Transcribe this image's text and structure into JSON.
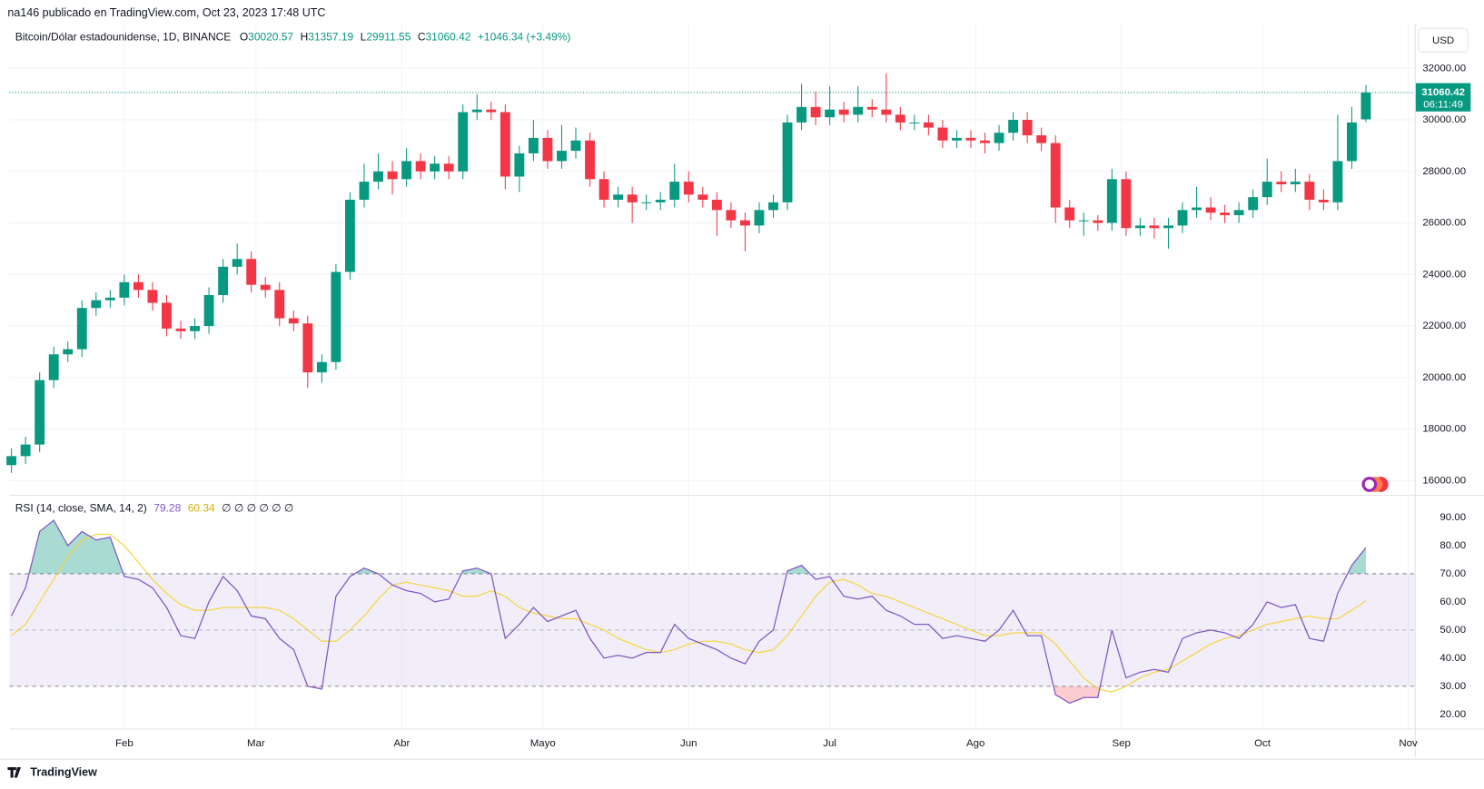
{
  "header": {
    "author": "na146 publicado en TradingView.com, Oct 23, 2023 17:48 UTC",
    "symbol": "Bitcoin/Dólar estadounidense, 1D, BINANCE",
    "ohlc": [
      "O",
      "30020.57",
      "H",
      "31357.19",
      "L",
      "29911.55",
      "C",
      "31060.42"
    ],
    "change": "+1046.34 (+3.49%)",
    "currency": "USD",
    "price_label": "31060.42",
    "countdown": "06:11:49"
  },
  "footer": {
    "brand": "TradingView"
  },
  "chart_data": [
    {
      "type": "candlestick",
      "up_color": "#089981",
      "down_color": "#f23645",
      "grid": true,
      "xlim": [
        6.6,
        305.4
      ],
      "xticks": [
        {
          "value": 31,
          "label": "Feb"
        },
        {
          "value": 59,
          "label": "Mar"
        },
        {
          "value": 90,
          "label": "Abr"
        },
        {
          "value": 120,
          "label": "Mayo"
        },
        {
          "value": 151,
          "label": "Jun"
        },
        {
          "value": 181,
          "label": "Jul"
        },
        {
          "value": 212,
          "label": "Ago"
        },
        {
          "value": 243,
          "label": "Sep"
        },
        {
          "value": 273,
          "label": "Oct"
        },
        {
          "value": 304,
          "label": "Nov"
        }
      ],
      "ylim": [
        15560,
        33000
      ],
      "yticks": [
        {
          "value": 16000,
          "label": "16000.00"
        },
        {
          "value": 18000,
          "label": "18000.00"
        },
        {
          "value": 20000,
          "label": "20000.00"
        },
        {
          "value": 22000,
          "label": "22000.00"
        },
        {
          "value": 24000,
          "label": "24000.00"
        },
        {
          "value": 26000,
          "label": "26000.00"
        },
        {
          "value": 28000,
          "label": "28000.00"
        },
        {
          "value": 30000,
          "label": "30000.00"
        },
        {
          "value": 32000,
          "label": "32000.00"
        }
      ],
      "x": [
        7,
        10,
        13,
        16,
        19,
        22,
        25,
        28,
        31,
        34,
        37,
        40,
        43,
        46,
        49,
        52,
        55,
        58,
        61,
        64,
        67,
        70,
        73,
        76,
        79,
        82,
        85,
        88,
        91,
        94,
        97,
        100,
        103,
        106,
        109,
        112,
        115,
        118,
        121,
        124,
        127,
        130,
        133,
        136,
        139,
        142,
        145,
        148,
        151,
        154,
        157,
        160,
        163,
        166,
        169,
        172,
        175,
        178,
        181,
        184,
        187,
        190,
        193,
        196,
        199,
        202,
        205,
        208,
        211,
        214,
        217,
        220,
        223,
        226,
        229,
        232,
        235,
        238,
        241,
        244,
        247,
        250,
        253,
        256,
        259,
        262,
        265,
        268,
        271,
        274,
        277,
        280,
        283,
        286,
        289,
        292,
        295
      ],
      "open": [
        16600,
        16950,
        17400,
        19900,
        20900,
        21100,
        22700,
        23000,
        23100,
        23700,
        23400,
        22900,
        21900,
        21800,
        22000,
        23200,
        24300,
        24600,
        23600,
        23400,
        22300,
        22100,
        20200,
        20600,
        24100,
        26900,
        27600,
        28000,
        27700,
        28400,
        28000,
        28300,
        28000,
        30300,
        30400,
        30300,
        27800,
        28700,
        29300,
        28400,
        28800,
        29200,
        27700,
        26900,
        27100,
        26800,
        26800,
        26900,
        27600,
        27100,
        26900,
        26500,
        26100,
        25900,
        26500,
        26800,
        29900,
        30500,
        30100,
        30400,
        30200,
        30500,
        30400,
        30200,
        29900,
        29900,
        29700,
        29200,
        29300,
        29200,
        29100,
        29500,
        30000,
        29400,
        29100,
        26600,
        26100,
        26100,
        26000,
        27700,
        25800,
        25900,
        25800,
        25900,
        26500,
        26600,
        26400,
        26300,
        26500,
        27000,
        27600,
        27500,
        27600,
        26900,
        26800,
        28400,
        30020.57
      ],
      "high": [
        17250,
        17700,
        20200,
        21200,
        21400,
        23000,
        23300,
        23400,
        24000,
        24000,
        23700,
        23200,
        22200,
        22300,
        23500,
        24600,
        25200,
        24900,
        23900,
        23700,
        22600,
        22400,
        20900,
        24400,
        27200,
        28300,
        28700,
        28400,
        28900,
        28700,
        28600,
        28600,
        30600,
        31000,
        30700,
        30600,
        29000,
        30000,
        29600,
        29800,
        29700,
        29500,
        28000,
        27400,
        27400,
        27100,
        27200,
        28300,
        28000,
        27400,
        27200,
        26800,
        26400,
        26800,
        27100,
        30200,
        31400,
        31100,
        31300,
        30700,
        31300,
        30800,
        31800,
        30500,
        30200,
        30200,
        30000,
        29600,
        29600,
        29500,
        29800,
        30300,
        30300,
        29700,
        29400,
        26900,
        26400,
        26300,
        28100,
        28000,
        26200,
        26200,
        26200,
        26800,
        27400,
        27000,
        26700,
        26800,
        27300,
        28500,
        28000,
        28100,
        27900,
        27300,
        30200,
        30500,
        31357.19
      ],
      "low": [
        16300,
        16650,
        17100,
        19600,
        20600,
        20800,
        22400,
        22700,
        22800,
        23100,
        22600,
        21600,
        21500,
        21500,
        21700,
        22900,
        24000,
        23300,
        23100,
        22000,
        21800,
        19600,
        19800,
        20300,
        23800,
        26600,
        27300,
        27100,
        27400,
        27700,
        27700,
        27700,
        27700,
        30000,
        30000,
        27300,
        27200,
        28400,
        28100,
        28100,
        28500,
        27400,
        26600,
        26600,
        26000,
        26500,
        26500,
        26600,
        26800,
        26600,
        25500,
        25800,
        24900,
        25600,
        26200,
        26500,
        29600,
        29800,
        29800,
        29900,
        29900,
        30100,
        29900,
        29600,
        29600,
        29400,
        28900,
        28900,
        28900,
        28700,
        28800,
        29200,
        29100,
        28800,
        26000,
        25800,
        25500,
        25700,
        25700,
        25500,
        25500,
        25400,
        25000,
        25600,
        26200,
        26100,
        26000,
        26000,
        26200,
        26700,
        27200,
        27200,
        26500,
        26500,
        26500,
        28100,
        29911.55
      ],
      "close": [
        16950,
        17400,
        19900,
        20900,
        21100,
        22700,
        23000,
        23100,
        23700,
        23400,
        22900,
        21900,
        21800,
        22000,
        23200,
        24300,
        24600,
        23600,
        23400,
        22300,
        22100,
        20200,
        20600,
        24100,
        26900,
        27600,
        28000,
        27700,
        28400,
        28000,
        28300,
        28000,
        30300,
        30400,
        30300,
        27800,
        28700,
        29300,
        28400,
        28800,
        29200,
        27700,
        26900,
        27100,
        26800,
        26800,
        26900,
        27600,
        27100,
        26900,
        26500,
        26100,
        25900,
        26500,
        26800,
        29900,
        30500,
        30100,
        30400,
        30200,
        30500,
        30400,
        30200,
        29900,
        29900,
        29700,
        29200,
        29300,
        29200,
        29100,
        29500,
        30000,
        29400,
        29100,
        26600,
        26100,
        26100,
        26000,
        27700,
        25800,
        25900,
        25800,
        25900,
        26500,
        26600,
        26400,
        26300,
        26500,
        27000,
        27600,
        27500,
        27600,
        26900,
        26800,
        28400,
        29900,
        31060.42
      ]
    },
    {
      "type": "line",
      "title": "RSI (14, close, SMA, 14, 2)",
      "extra": "∅ ∅ ∅ ∅ ∅ ∅",
      "xlim": [
        6.6,
        305.4
      ],
      "ylim": [
        15,
        97.4
      ],
      "yticks": [
        {
          "value": 20,
          "label": "20.00"
        },
        {
          "value": 30,
          "label": "30.00"
        },
        {
          "value": 40,
          "label": "40.00"
        },
        {
          "value": 50,
          "label": "50.00"
        },
        {
          "value": 60,
          "label": "60.00"
        },
        {
          "value": 70,
          "label": "70.00"
        },
        {
          "value": 80,
          "label": "80.00"
        },
        {
          "value": 90,
          "label": "90.00"
        }
      ],
      "levels": [
        70,
        50,
        30
      ],
      "band_color": "#7e57c2",
      "overbought_color": "#089981",
      "oversold_color": "#f23645",
      "x": [
        7,
        10,
        13,
        16,
        19,
        22,
        25,
        28,
        31,
        34,
        37,
        40,
        43,
        46,
        49,
        52,
        55,
        58,
        61,
        64,
        67,
        70,
        73,
        76,
        79,
        82,
        85,
        88,
        91,
        94,
        97,
        100,
        103,
        106,
        109,
        112,
        115,
        118,
        121,
        124,
        127,
        130,
        133,
        136,
        139,
        142,
        145,
        148,
        151,
        154,
        157,
        160,
        163,
        166,
        169,
        172,
        175,
        178,
        181,
        184,
        187,
        190,
        193,
        196,
        199,
        202,
        205,
        208,
        211,
        214,
        217,
        220,
        223,
        226,
        229,
        232,
        235,
        238,
        241,
        244,
        247,
        250,
        253,
        256,
        259,
        262,
        265,
        268,
        271,
        274,
        277,
        280,
        283,
        286,
        289,
        292,
        295
      ],
      "series": [
        {
          "color": "#7e57c2",
          "last_label": "79.28",
          "values": [
            55,
            65,
            85,
            89,
            80,
            85,
            82,
            83,
            69,
            68,
            65,
            58,
            48,
            47,
            60,
            69,
            64,
            55,
            54,
            47,
            43,
            30,
            29,
            62,
            69,
            72,
            70,
            66,
            64,
            63,
            60,
            61,
            71,
            72,
            70,
            47,
            52,
            58,
            53,
            55,
            57,
            47,
            40,
            41,
            40,
            42,
            42,
            52,
            47,
            45,
            43,
            40,
            38,
            46,
            50,
            71,
            73,
            68,
            69,
            62,
            61,
            62,
            57,
            55,
            52,
            52,
            47,
            48,
            47,
            46,
            50,
            57,
            48,
            48,
            27,
            24,
            26,
            26,
            50,
            33,
            35,
            36,
            35,
            47,
            49,
            50,
            49,
            47,
            52,
            60,
            58,
            59,
            47,
            46,
            63,
            73,
            79.28
          ]
        },
        {
          "color": "#f5d547",
          "last_label": "60.34",
          "values": [
            48,
            52,
            60,
            68,
            76,
            82,
            84,
            84,
            80,
            74,
            68,
            63,
            59,
            57,
            57,
            58,
            58,
            58,
            58,
            57,
            54,
            50,
            46,
            46,
            50,
            55,
            61,
            66,
            67,
            66,
            65,
            64,
            62,
            62,
            64,
            62,
            58,
            56,
            55,
            54,
            54,
            52,
            50,
            47,
            45,
            43,
            42,
            43,
            45,
            46,
            46,
            45,
            43,
            42,
            43,
            48,
            55,
            62,
            67,
            68,
            66,
            63,
            62,
            60,
            58,
            56,
            54,
            52,
            50,
            48,
            48,
            49,
            49,
            49,
            45,
            39,
            33,
            29,
            28,
            30,
            33,
            35,
            36,
            39,
            42,
            45,
            47,
            48,
            50,
            52,
            53,
            54,
            55,
            54,
            54,
            57,
            60.34
          ]
        }
      ]
    }
  ]
}
